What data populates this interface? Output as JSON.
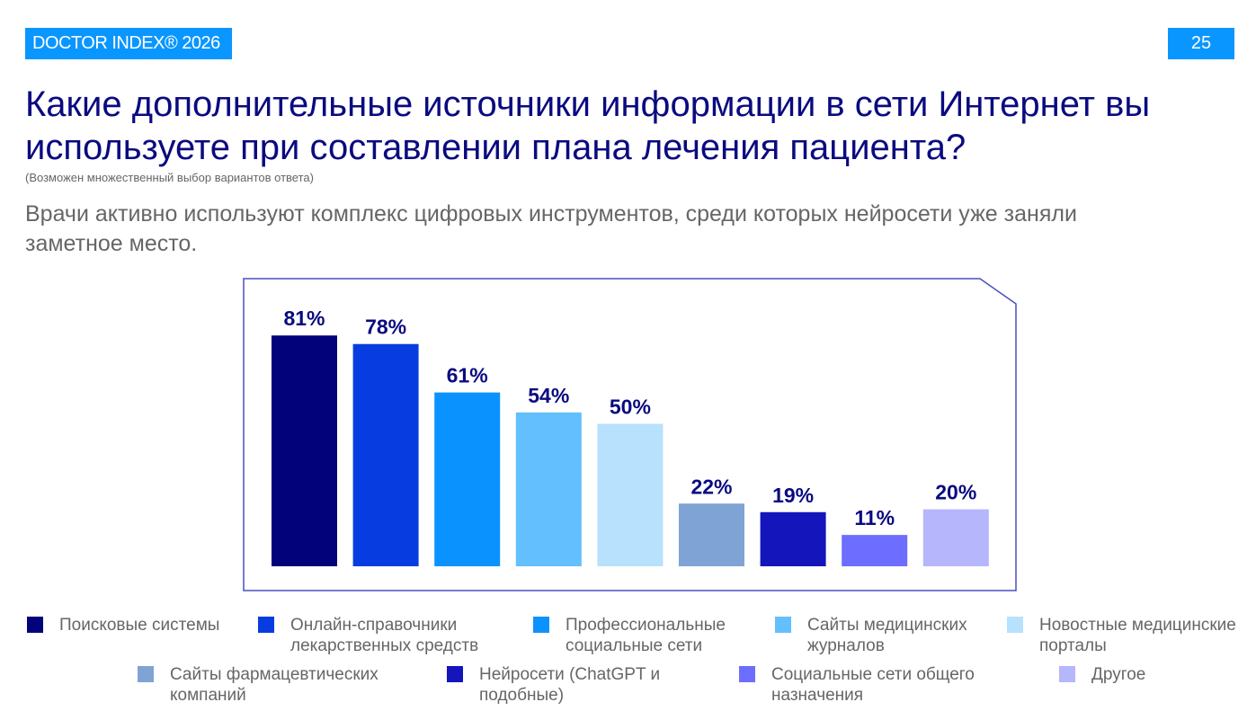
{
  "header": {
    "brand": "DOCTOR INDEX® 2026",
    "page_number": "25"
  },
  "title": "Какие дополнительные источники информации в сети Интернет вы используете при составлении плана лечения пациента?",
  "note": "(Возможен множественный выбор вариантов ответа)",
  "subtitle": "Врачи активно используют комплекс цифровых инструментов, среди которых нейросети уже заняли заметное место.",
  "chart_data": {
    "type": "bar",
    "categories": [
      "Поисковые системы",
      "Онлайн-справочники лекарственных средств",
      "Профессиональные социальные сети",
      "Сайты медицинских журналов",
      "Новостные медицинские порталы",
      "Сайты фармацевтических компаний",
      "Нейросети (ChatGPT и подобные)",
      "Социальные сети общего назначения",
      "Другое"
    ],
    "values": [
      81,
      78,
      61,
      54,
      50,
      22,
      19,
      11,
      20
    ],
    "data_labels": [
      "81%",
      "78%",
      "61%",
      "54%",
      "50%",
      "22%",
      "19%",
      "11%",
      "20%"
    ],
    "colors": [
      "#02037a",
      "#073de0",
      "#0a93ff",
      "#63bffd",
      "#b7e1fd",
      "#7fa3d5",
      "#1415bb",
      "#6d6dff",
      "#b6b6fd"
    ],
    "legend_placement": "bottom",
    "grid": false
  }
}
